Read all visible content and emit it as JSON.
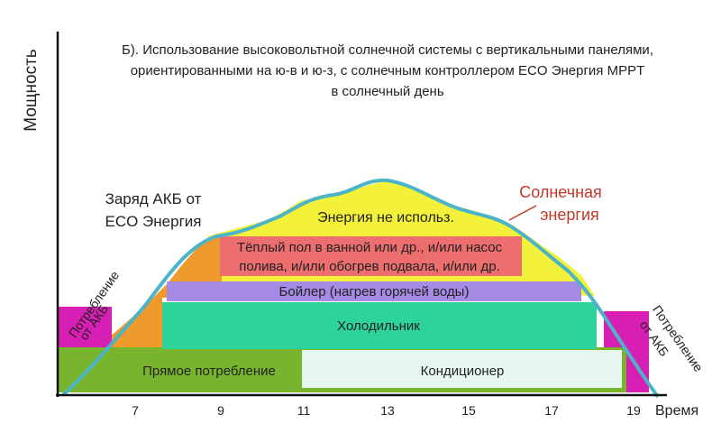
{
  "chart_data": {
    "type": "area",
    "title_lines": [
      "Б). Использование высоковольтной солнечной системы с вертикальными панелями,",
      "ориентированными на ю-в и ю-з, с солнечным контроллером ECO Энергия MPPT",
      "в солнечный день"
    ],
    "ylabel": "Мощность",
    "xlabel": "Время",
    "x_ticks": [
      "7",
      "9",
      "11",
      "13",
      "15",
      "17",
      "19"
    ],
    "regions": [
      {
        "name": "battery_left",
        "lines": [
          "Потребление",
          "от АКБ"
        ],
        "color": "#d81fb4"
      },
      {
        "name": "battery_right",
        "lines": [
          "Потребление",
          "от АКБ"
        ],
        "color": "#d81fb4"
      },
      {
        "name": "direct",
        "label": "Прямое потребление",
        "color": "#79b42e"
      },
      {
        "name": "conditioner",
        "label": "Кондиционер",
        "color": "#e6f7ef"
      },
      {
        "name": "fridge",
        "label": "Холодильник",
        "color": "#2ed39a"
      },
      {
        "name": "boiler",
        "label": "Бойлер (нагрев горячей воды)",
        "color": "#a58ae6"
      },
      {
        "name": "floor",
        "lines": [
          "Тёплый пол в ванной или др., и/или насос",
          "полива, и/или обогрев подвала, и/или др."
        ],
        "color": "#ec6e6e"
      },
      {
        "name": "charge",
        "lines": [
          "Заряд АКБ от",
          "ECO Энергия"
        ],
        "color": "#ee9a2c"
      },
      {
        "name": "unused",
        "label": "Энергия не использ.",
        "color": "#f4f13a"
      }
    ],
    "solar_curve": {
      "lines": [
        "Солнечная",
        "энергия"
      ],
      "color": "#4bb4c8",
      "label_color": "#c0392b"
    }
  }
}
